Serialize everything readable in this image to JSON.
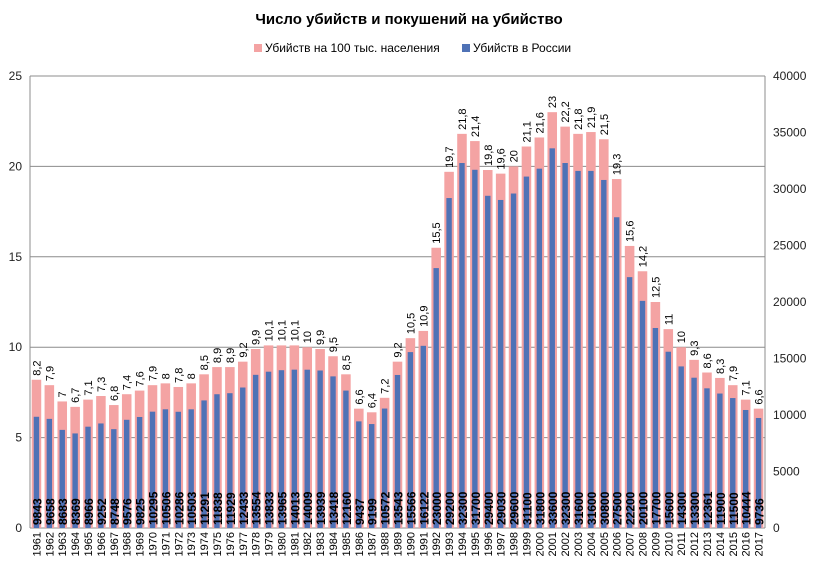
{
  "chart_data": {
    "type": "bar",
    "title": "Число убийств и покушений на убийство",
    "xlabel": "",
    "ylabel": "",
    "legend_position": "top",
    "grid": true,
    "categories": [
      "1961",
      "1962",
      "1963",
      "1964",
      "1965",
      "1966",
      "1967",
      "1968",
      "1969",
      "1970",
      "1971",
      "1972",
      "1973",
      "1974",
      "1975",
      "1976",
      "1977",
      "1978",
      "1979",
      "1980",
      "1981",
      "1982",
      "1983",
      "1984",
      "1985",
      "1986",
      "1987",
      "1988",
      "1989",
      "1990",
      "1991",
      "1992",
      "1993",
      "1994",
      "1995",
      "1996",
      "1997",
      "1998",
      "1999",
      "2000",
      "2001",
      "2002",
      "2003",
      "2004",
      "2005",
      "2006",
      "2007",
      "2008",
      "2009",
      "2010",
      "2011",
      "2012",
      "2013",
      "2014",
      "2015",
      "2016",
      "2017"
    ],
    "series": [
      {
        "name": "Убийств на 100 тыс. населения",
        "axis": "left",
        "color": "#f4a3a3",
        "values": [
          8.2,
          7.9,
          7,
          6.7,
          7.1,
          7.3,
          6.8,
          7.4,
          7.6,
          7.9,
          8,
          7.8,
          8,
          8.5,
          8.9,
          8.9,
          9.2,
          9.9,
          10.1,
          10.1,
          10.1,
          10,
          9.9,
          9.5,
          8.5,
          6.6,
          6.4,
          7.2,
          9.2,
          10.5,
          10.9,
          15.5,
          19.7,
          21.8,
          21.4,
          19.8,
          19.6,
          20,
          21.1,
          21.6,
          23,
          22.2,
          21.8,
          21.9,
          21.5,
          19.3,
          15.6,
          14.2,
          12.5,
          11,
          10,
          9.3,
          8.6,
          8.3,
          7.9,
          7.1,
          6.6
        ],
        "labels": [
          "8,2",
          "7,9",
          "7",
          "6,7",
          "7,1",
          "7,3",
          "6,8",
          "7,4",
          "7,6",
          "7,9",
          "8",
          "7,8",
          "8",
          "8,5",
          "8,9",
          "8,9",
          "9,2",
          "9,9",
          "10,1",
          "10,1",
          "10,1",
          "10",
          "9,9",
          "9,5",
          "8,5",
          "6,6",
          "6,4",
          "7,2",
          "9,2",
          "10,5",
          "10,9",
          "15,5",
          "19,7",
          "21,8",
          "21,4",
          "19,8",
          "19,6",
          "20",
          "21,1",
          "21,6",
          "23",
          "22,2",
          "21,8",
          "21,9",
          "21,5",
          "19,3",
          "15,6",
          "14,2",
          "12,5",
          "11",
          "10",
          "9,3",
          "8,6",
          "8,3",
          "7,9",
          "7,1",
          "6,6"
        ]
      },
      {
        "name": "Убийств в России",
        "axis": "right",
        "color": "#4f72b6",
        "values": [
          9843,
          9658,
          8683,
          8369,
          8966,
          9252,
          8748,
          9576,
          9825,
          10295,
          10506,
          10286,
          10503,
          11291,
          11838,
          11929,
          12433,
          13554,
          13833,
          13965,
          14013,
          14009,
          13939,
          13418,
          12160,
          9437,
          9199,
          10572,
          13543,
          15566,
          16122,
          23000,
          29200,
          32300,
          31700,
          29400,
          29030,
          29600,
          31100,
          31800,
          33600,
          32300,
          31600,
          31600,
          30800,
          27500,
          22200,
          20100,
          17700,
          15600,
          14300,
          13300,
          12361,
          11900,
          11500,
          10444,
          9736
        ]
      }
    ],
    "y_left": {
      "min": 0,
      "max": 25,
      "ticks": [
        0,
        5,
        10,
        15,
        20,
        25
      ]
    },
    "y_right": {
      "min": 0,
      "max": 40000,
      "ticks": [
        0,
        5000,
        10000,
        15000,
        20000,
        25000,
        30000,
        35000,
        40000
      ]
    }
  }
}
